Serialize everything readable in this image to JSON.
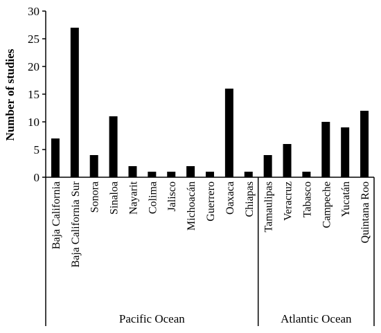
{
  "chart_data": {
    "type": "bar",
    "ylabel": "Number of studies",
    "ylim": [
      0,
      30
    ],
    "yticks": [
      0,
      5,
      10,
      15,
      20,
      25,
      30
    ],
    "categories": [
      "Baja California",
      "Baja California Sur",
      "Sonora",
      "Sinaloa",
      "Nayarit",
      "Colima",
      "Jalisco",
      "Michoacán",
      "Guerrero",
      "Oaxaca",
      "Chiapas",
      "Tamaulipas",
      "Veracruz",
      "Tabasco",
      "Campeche",
      "Yucatán",
      "Quintana Roo"
    ],
    "values": [
      7,
      27,
      4,
      11,
      2,
      1,
      1,
      2,
      1,
      16,
      1,
      4,
      6,
      1,
      10,
      9,
      12
    ],
    "groups": [
      {
        "label": "Pacific Ocean",
        "count": 11
      },
      {
        "label": "Atlantic Ocean",
        "count": 6
      }
    ],
    "bar_color": "#000000",
    "grid": false,
    "legend": "none"
  }
}
